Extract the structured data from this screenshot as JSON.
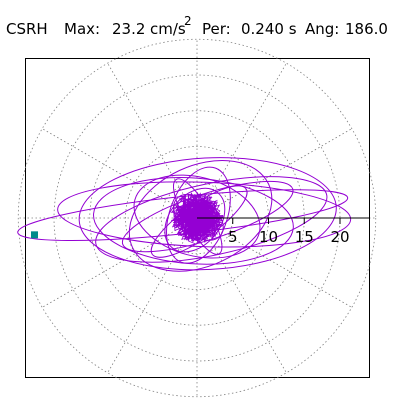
{
  "header": {
    "station": "CSRH",
    "max_label": "Max:",
    "max_value": "23.2",
    "max_unit": "cm/s",
    "max_exp": "2",
    "per_label": "Per:",
    "per_value": "0.240 s",
    "ang_label": "Ang:",
    "ang_value": "186.0"
  },
  "chart_data": {
    "type": "polar-orbit",
    "title": "",
    "units": "cm/s^2",
    "max": 23.2,
    "period_s": 0.24,
    "angle_deg": 186.0,
    "radial_ticks": [
      5,
      10,
      15,
      20
    ],
    "radial_tick_labels": [
      "5",
      "10",
      "15",
      "20"
    ],
    "rmax": 25,
    "grid": true,
    "grid_style": "dotted",
    "angular_grid_step_deg": 30,
    "peak_marker": {
      "angle_deg": 186.0,
      "r": 23.2
    },
    "orbits": [
      {
        "a": 23.2,
        "b": 2.6,
        "rot_deg": 6,
        "cx": -2.0,
        "cy": 0.4
      },
      {
        "a": 18.0,
        "b": 7.8,
        "rot_deg": 3,
        "cx": 1.5,
        "cy": 0.6
      },
      {
        "a": 16.5,
        "b": 5.0,
        "rot_deg": 12,
        "cx": 2.0,
        "cy": -0.2
      },
      {
        "a": 14.0,
        "b": 6.0,
        "rot_deg": -4,
        "cx": -0.5,
        "cy": -0.4
      },
      {
        "a": 12.5,
        "b": 3.2,
        "rot_deg": 18,
        "cx": 1.5,
        "cy": 0.2
      },
      {
        "a": 10.5,
        "b": 7.0,
        "rot_deg": 25,
        "cx": 0.5,
        "cy": 0.3
      },
      {
        "a": 9.0,
        "b": 5.5,
        "rot_deg": -15,
        "cx": 0.0,
        "cy": 0.2
      },
      {
        "a": 8.0,
        "b": 2.4,
        "rot_deg": 35,
        "cx": 0.3,
        "cy": -0.5
      },
      {
        "a": 7.0,
        "b": 4.0,
        "rot_deg": 70,
        "cx": 0.2,
        "cy": 0.4
      },
      {
        "a": 20.5,
        "b": 4.5,
        "rot_deg": -2,
        "cx": 1.0,
        "cy": 0.5
      },
      {
        "a": 5.0,
        "b": 3.5,
        "rot_deg": 50,
        "cx": -0.3,
        "cy": -0.3
      },
      {
        "a": 4.0,
        "b": 2.5,
        "rot_deg": -40,
        "cx": 0.2,
        "cy": 0.1
      },
      {
        "a": 3.0,
        "b": 2.0,
        "rot_deg": 10,
        "cx": -0.1,
        "cy": 0.0
      },
      {
        "a": 6.0,
        "b": 1.8,
        "rot_deg": -60,
        "cx": 0.1,
        "cy": 0.2
      }
    ],
    "colors": {
      "orbit": "#9400D3",
      "marker": "#008B8B",
      "grid": "#808080",
      "axis": "#000000"
    }
  }
}
